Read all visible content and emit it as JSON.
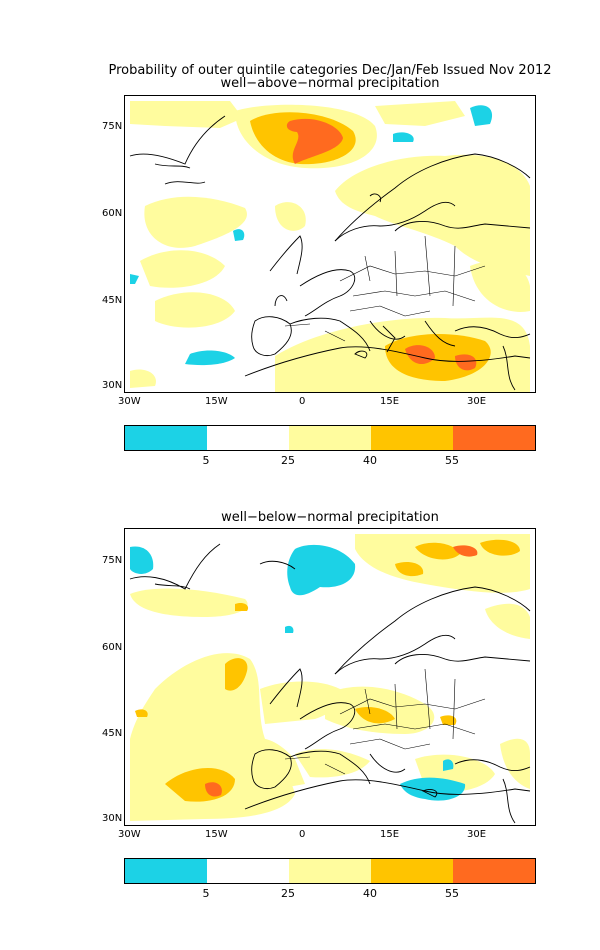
{
  "header": {
    "title": "Probability of outer quintile categories Dec/Jan/Feb Issued Nov 2012"
  },
  "panels": [
    {
      "subtitle": "well−above−normal precipitation",
      "lat_ticks": [
        "75N",
        "60N",
        "45N",
        "30N"
      ],
      "lon_ticks": [
        "30W",
        "15W",
        "0",
        "15E",
        "30E"
      ]
    },
    {
      "subtitle": "well−below−normal precipitation",
      "lat_ticks": [
        "75N",
        "60N",
        "45N",
        "30N"
      ],
      "lon_ticks": [
        "30W",
        "15W",
        "0",
        "15E",
        "30E"
      ]
    }
  ],
  "colorbar": {
    "labels": [
      "5",
      "25",
      "40",
      "55"
    ],
    "colors": [
      "#1cd2e6",
      "#ffffff",
      "#fffc9e",
      "#ffc400",
      "#ff6a1f"
    ]
  },
  "legend_colors": {
    "cyan": "#1cd2e6",
    "light_yellow": "#fffc9e",
    "orange": "#ffc400",
    "dark_orange": "#ff6a1f"
  }
}
